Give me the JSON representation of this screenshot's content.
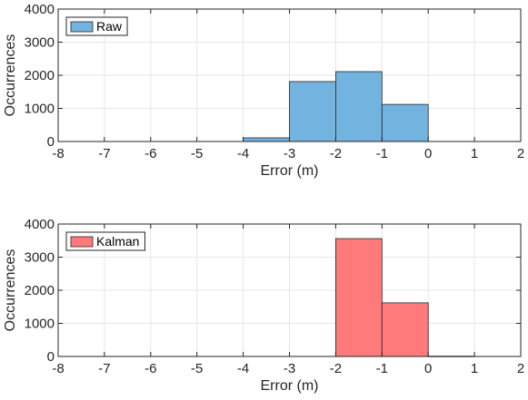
{
  "chart_data": [
    {
      "type": "bar",
      "histogram": true,
      "xlabel": "Error (m)",
      "ylabel": "Occurrences",
      "xlim": [
        -8,
        2
      ],
      "ylim": [
        0,
        4000
      ],
      "xticks": [
        -8,
        -7,
        -6,
        -5,
        -4,
        -3,
        -2,
        -1,
        0,
        1,
        2
      ],
      "yticks": [
        0,
        1000,
        2000,
        3000,
        4000
      ],
      "grid": true,
      "legend": "top-left",
      "series": [
        {
          "name": "Raw",
          "color": "#72b4df",
          "bins": [
            {
              "from": -4,
              "to": -3,
              "value": 110
            },
            {
              "from": -3,
              "to": -2,
              "value": 1810
            },
            {
              "from": -2,
              "to": -1,
              "value": 2110
            },
            {
              "from": -1,
              "to": 0,
              "value": 1120
            }
          ]
        }
      ]
    },
    {
      "type": "bar",
      "histogram": true,
      "xlabel": "Error (m)",
      "ylabel": "Occurrences",
      "xlim": [
        -8,
        2
      ],
      "ylim": [
        0,
        4000
      ],
      "xticks": [
        -8,
        -7,
        -6,
        -5,
        -4,
        -3,
        -2,
        -1,
        0,
        1,
        2
      ],
      "yticks": [
        0,
        1000,
        2000,
        3000,
        4000
      ],
      "grid": true,
      "legend": "top-left",
      "series": [
        {
          "name": "Kalman",
          "color": "#ff7b7b",
          "bins": [
            {
              "from": -2,
              "to": -1,
              "value": 3560
            },
            {
              "from": -1,
              "to": 0,
              "value": 1620
            },
            {
              "from": 0,
              "to": 1,
              "value": 10
            }
          ]
        }
      ]
    }
  ]
}
